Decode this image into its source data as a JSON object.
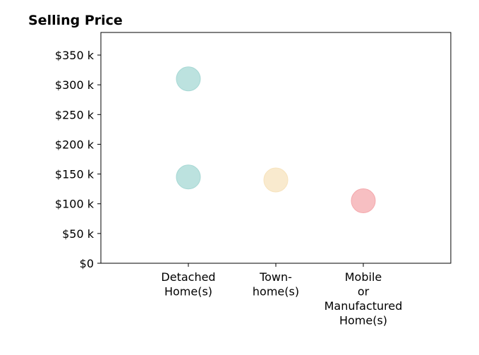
{
  "chart_data": {
    "type": "scatter",
    "title": "Selling Price",
    "xlabel": "",
    "ylabel": "",
    "categories": [
      "Detached\nHome(s)",
      "Town-\nhome(s)",
      "Mobile\nor\nManufactured\nHome(s)"
    ],
    "ylim": [
      0,
      388000
    ],
    "yticks": [
      0,
      50000,
      100000,
      150000,
      200000,
      250000,
      300000,
      350000
    ],
    "ytick_labels": [
      "$0",
      "$50 k",
      "$100 k",
      "$150 k",
      "$200 k",
      "$250 k",
      "$300 k",
      "$350 k"
    ],
    "grid": false,
    "legend": "none",
    "points": [
      {
        "category": 0,
        "y": 310000,
        "color": "#a6d8d4"
      },
      {
        "category": 0,
        "y": 145000,
        "color": "#a6d8d4"
      },
      {
        "category": 1,
        "y": 140000,
        "color": "#f7e3bd"
      },
      {
        "category": 2,
        "y": 105000,
        "color": "#f4a9ad"
      }
    ]
  }
}
